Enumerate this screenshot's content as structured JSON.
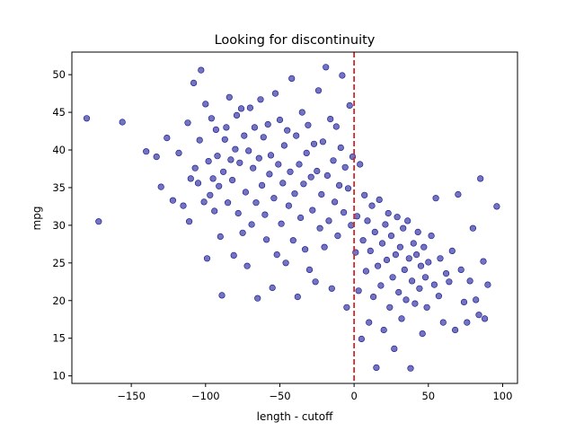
{
  "chart_data": {
    "type": "scatter",
    "title": "Looking for discontinuity",
    "xlabel": "length - cutoff",
    "ylabel": "mpg",
    "xlim": [
      -190,
      110
    ],
    "ylim": [
      9,
      53
    ],
    "xticks": [
      -150,
      -100,
      -50,
      0,
      50,
      100
    ],
    "xtick_labels": [
      "−150",
      "−100",
      "−50",
      "0",
      "50",
      "100"
    ],
    "yticks": [
      10,
      15,
      20,
      25,
      30,
      35,
      40,
      45,
      50
    ],
    "ytick_labels": [
      "10",
      "15",
      "20",
      "25",
      "30",
      "35",
      "40",
      "45",
      "50"
    ],
    "grid": false,
    "point_color": "#00008b",
    "point_opacity": 0.55,
    "cutoff_line": {
      "x": 0,
      "color": "#d62728",
      "style": "dashed"
    },
    "points": [
      [
        -180,
        44.2
      ],
      [
        -172,
        30.5
      ],
      [
        -156,
        43.7
      ],
      [
        -140,
        39.8
      ],
      [
        -133,
        39.1
      ],
      [
        -130,
        35.1
      ],
      [
        -126,
        41.6
      ],
      [
        -122,
        33.3
      ],
      [
        -118,
        39.6
      ],
      [
        -115,
        32.6
      ],
      [
        -112,
        43.6
      ],
      [
        -111,
        30.5
      ],
      [
        -110,
        36.2
      ],
      [
        -108,
        48.9
      ],
      [
        -107,
        37.6
      ],
      [
        -105,
        35.6
      ],
      [
        -104,
        41.3
      ],
      [
        -103,
        50.6
      ],
      [
        -101,
        33.1
      ],
      [
        -100,
        46.1
      ],
      [
        -99,
        25.6
      ],
      [
        -98,
        38.5
      ],
      [
        -97,
        34.0
      ],
      [
        -96,
        44.2
      ],
      [
        -95,
        36.2
      ],
      [
        -94,
        31.9
      ],
      [
        -93,
        42.7
      ],
      [
        -92,
        39.2
      ],
      [
        -91,
        35.2
      ],
      [
        -90,
        28.5
      ],
      [
        -89,
        20.7
      ],
      [
        -88,
        37.1
      ],
      [
        -87,
        41.4
      ],
      [
        -86,
        43.0
      ],
      [
        -85,
        33.0
      ],
      [
        -84,
        47.0
      ],
      [
        -83,
        38.7
      ],
      [
        -82,
        36.0
      ],
      [
        -81,
        26.0
      ],
      [
        -80,
        40.1
      ],
      [
        -79,
        44.6
      ],
      [
        -78,
        31.6
      ],
      [
        -77,
        38.3
      ],
      [
        -76,
        45.5
      ],
      [
        -75,
        29.0
      ],
      [
        -74,
        41.9
      ],
      [
        -73,
        34.4
      ],
      [
        -72,
        24.6
      ],
      [
        -71,
        39.9
      ],
      [
        -70,
        45.6
      ],
      [
        -69,
        30.1
      ],
      [
        -68,
        37.6
      ],
      [
        -67,
        43.0
      ],
      [
        -66,
        33.0
      ],
      [
        -65,
        20.3
      ],
      [
        -64,
        38.9
      ],
      [
        -63,
        46.7
      ],
      [
        -62,
        35.3
      ],
      [
        -61,
        41.7
      ],
      [
        -60,
        31.4
      ],
      [
        -59,
        28.1
      ],
      [
        -58,
        43.4
      ],
      [
        -57,
        36.8
      ],
      [
        -56,
        39.3
      ],
      [
        -55,
        21.7
      ],
      [
        -54,
        33.6
      ],
      [
        -53,
        47.5
      ],
      [
        -52,
        26.1
      ],
      [
        -51,
        38.1
      ],
      [
        -50,
        44.0
      ],
      [
        -49,
        30.2
      ],
      [
        -48,
        35.6
      ],
      [
        -47,
        40.6
      ],
      [
        -46,
        25.0
      ],
      [
        -45,
        42.6
      ],
      [
        -44,
        32.6
      ],
      [
        -43,
        37.1
      ],
      [
        -42,
        49.5
      ],
      [
        -41,
        28.0
      ],
      [
        -40,
        34.2
      ],
      [
        -39,
        41.9
      ],
      [
        -38,
        20.5
      ],
      [
        -37,
        38.1
      ],
      [
        -36,
        31.0
      ],
      [
        -35,
        45.0
      ],
      [
        -34,
        35.5
      ],
      [
        -33,
        26.8
      ],
      [
        -32,
        39.6
      ],
      [
        -31,
        43.3
      ],
      [
        -30,
        24.1
      ],
      [
        -29,
        36.4
      ],
      [
        -28,
        32.0
      ],
      [
        -27,
        40.8
      ],
      [
        -26,
        22.5
      ],
      [
        -25,
        37.2
      ],
      [
        -24,
        47.9
      ],
      [
        -23,
        29.6
      ],
      [
        -22,
        34.1
      ],
      [
        -21,
        41.1
      ],
      [
        -20,
        27.1
      ],
      [
        -19,
        51.0
      ],
      [
        -18,
        36.6
      ],
      [
        -17,
        30.6
      ],
      [
        -16,
        44.1
      ],
      [
        -15,
        21.6
      ],
      [
        -14,
        38.6
      ],
      [
        -13,
        33.1
      ],
      [
        -12,
        43.1
      ],
      [
        -11,
        28.6
      ],
      [
        -10,
        35.3
      ],
      [
        -9,
        40.3
      ],
      [
        -8,
        49.9
      ],
      [
        -7,
        31.7
      ],
      [
        -6,
        37.7
      ],
      [
        -5,
        19.1
      ],
      [
        -4,
        34.9
      ],
      [
        -3,
        45.9
      ],
      [
        -2,
        30.0
      ],
      [
        -1,
        39.1
      ],
      [
        1,
        26.4
      ],
      [
        2,
        31.2
      ],
      [
        3,
        21.3
      ],
      [
        4,
        38.1
      ],
      [
        5,
        14.9
      ],
      [
        6,
        28.0
      ],
      [
        7,
        34.0
      ],
      [
        8,
        23.9
      ],
      [
        9,
        30.6
      ],
      [
        10,
        17.1
      ],
      [
        11,
        26.6
      ],
      [
        12,
        32.6
      ],
      [
        13,
        20.5
      ],
      [
        14,
        29.1
      ],
      [
        15,
        11.1
      ],
      [
        16,
        24.6
      ],
      [
        17,
        33.4
      ],
      [
        18,
        22.0
      ],
      [
        19,
        27.6
      ],
      [
        20,
        16.1
      ],
      [
        21,
        30.1
      ],
      [
        22,
        25.4
      ],
      [
        23,
        31.6
      ],
      [
        24,
        19.1
      ],
      [
        25,
        28.6
      ],
      [
        26,
        23.1
      ],
      [
        27,
        13.6
      ],
      [
        28,
        26.1
      ],
      [
        29,
        31.1
      ],
      [
        30,
        21.1
      ],
      [
        31,
        27.1
      ],
      [
        32,
        17.6
      ],
      [
        33,
        29.6
      ],
      [
        34,
        24.1
      ],
      [
        35,
        20.1
      ],
      [
        36,
        30.6
      ],
      [
        37,
        25.6
      ],
      [
        38,
        11.0
      ],
      [
        39,
        22.6
      ],
      [
        40,
        27.6
      ],
      [
        41,
        19.6
      ],
      [
        42,
        26.1
      ],
      [
        43,
        29.1
      ],
      [
        44,
        21.6
      ],
      [
        45,
        24.6
      ],
      [
        46,
        15.6
      ],
      [
        47,
        27.1
      ],
      [
        48,
        23.1
      ],
      [
        49,
        19.1
      ],
      [
        50,
        25.1
      ],
      [
        52,
        28.6
      ],
      [
        54,
        22.1
      ],
      [
        55,
        33.6
      ],
      [
        57,
        20.6
      ],
      [
        58,
        25.6
      ],
      [
        60,
        17.1
      ],
      [
        62,
        23.6
      ],
      [
        64,
        22.5
      ],
      [
        66,
        26.6
      ],
      [
        68,
        16.1
      ],
      [
        70,
        34.1
      ],
      [
        72,
        24.1
      ],
      [
        74,
        19.8
      ],
      [
        76,
        17.1
      ],
      [
        78,
        22.6
      ],
      [
        80,
        29.6
      ],
      [
        82,
        20.1
      ],
      [
        84,
        18.1
      ],
      [
        85,
        36.2
      ],
      [
        87,
        25.2
      ],
      [
        88,
        17.6
      ],
      [
        90,
        22.1
      ],
      [
        96,
        32.5
      ]
    ]
  }
}
